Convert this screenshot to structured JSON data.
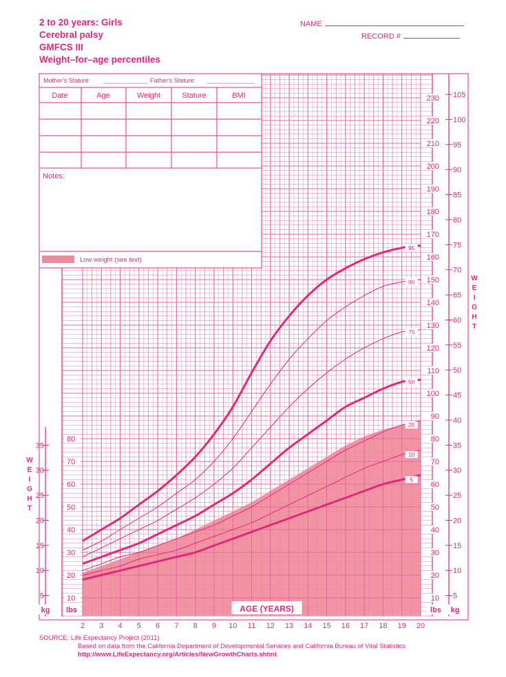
{
  "header": {
    "title_lines": [
      "2 to 20 years: Girls",
      "Cerebral palsy",
      "GMFCS III",
      "Weight–for–age percentiles"
    ],
    "name_label": "NAME",
    "record_label": "RECORD #"
  },
  "form": {
    "mothers_stature_label": "Mother's Stature:",
    "fathers_stature_label": "Father's Stature:",
    "columns": [
      "Date",
      "Age",
      "Weight",
      "Stature",
      "BMI"
    ],
    "notes_label": "Notes:",
    "legend_label": "Low weight (see text)"
  },
  "side_labels": {
    "weight_vertical": "WEIGHT"
  },
  "footer": {
    "source_line": "SOURCE:  Life Expectancy Project (2011)",
    "based_line": "Based on data from the California Department of Developmental Services and California Bureau of Vital Statistics",
    "url": "http://www.LifeExpectancy.org/Articles/NewGrowthCharts.shtml"
  },
  "colors": {
    "primary": "#e0287a",
    "shade": "#ef8a9a",
    "grid": "#e66a9e"
  },
  "chart_data": {
    "type": "line",
    "xlabel": "AGE (YEARS)",
    "x_ticks": [
      2,
      3,
      4,
      5,
      6,
      7,
      8,
      9,
      10,
      11,
      12,
      13,
      14,
      15,
      16,
      17,
      18,
      19,
      20
    ],
    "xlim": [
      2,
      20
    ],
    "y_lbs_ticks": [
      10,
      20,
      30,
      40,
      50,
      60,
      70,
      80,
      90,
      100,
      110,
      120,
      130,
      140,
      150,
      160,
      170,
      180,
      190,
      200,
      210,
      220,
      230
    ],
    "y_lbs_left_ticks": [
      10,
      20,
      30,
      40,
      50,
      60,
      70,
      80
    ],
    "y_kg_ticks": [
      5,
      10,
      15,
      20,
      25,
      30,
      35,
      40,
      45,
      50,
      55,
      60,
      65,
      70,
      75,
      80,
      85,
      90,
      95,
      100,
      105
    ],
    "y_kg_left_ticks": [
      5,
      10,
      15,
      20,
      25,
      30,
      35
    ],
    "unit_labels": {
      "kg": "kg",
      "lbs": "lbs"
    },
    "series": [
      {
        "name": "95",
        "label": "95",
        "x": [
          2,
          3,
          4,
          5,
          6,
          7,
          8,
          9,
          10,
          11,
          12,
          13,
          14,
          15,
          16,
          17,
          18,
          19,
          20
        ],
        "values": [
          35,
          40,
          45,
          51,
          57,
          64,
          72,
          82,
          94,
          109,
          123,
          134,
          143,
          150,
          155,
          159,
          162,
          164,
          165
        ]
      },
      {
        "name": "90",
        "label": "90",
        "x": [
          2,
          3,
          4,
          5,
          6,
          7,
          8,
          9,
          10,
          11,
          12,
          13,
          14,
          15,
          16,
          17,
          18,
          19,
          20
        ],
        "values": [
          31,
          35,
          40,
          45,
          50,
          56,
          62,
          70,
          80,
          92,
          104,
          115,
          124,
          132,
          138,
          143,
          147,
          149,
          150
        ]
      },
      {
        "name": "75",
        "label": "75",
        "x": [
          2,
          3,
          4,
          5,
          6,
          7,
          8,
          9,
          10,
          11,
          12,
          13,
          14,
          15,
          16,
          17,
          18,
          19,
          20
        ],
        "values": [
          28,
          32,
          36,
          40,
          44,
          49,
          54,
          60,
          67,
          76,
          85,
          94,
          102,
          109,
          115,
          120,
          124,
          127,
          128
        ]
      },
      {
        "name": "50",
        "label": "50",
        "x": [
          2,
          3,
          4,
          5,
          6,
          7,
          8,
          9,
          10,
          11,
          12,
          13,
          14,
          15,
          16,
          17,
          18,
          19,
          20
        ],
        "values": [
          25,
          28,
          31,
          34,
          38,
          42,
          46,
          51,
          56,
          62,
          69,
          76,
          82,
          88,
          94,
          98,
          102,
          105,
          106
        ]
      },
      {
        "name": "25",
        "label": "25",
        "x": [
          2,
          3,
          4,
          5,
          6,
          7,
          8,
          9,
          10,
          11,
          12,
          13,
          14,
          15,
          16,
          17,
          18,
          19,
          20
        ],
        "values": [
          22,
          25,
          28,
          30,
          33,
          36,
          39,
          42,
          46,
          50,
          55,
          60,
          65,
          70,
          75,
          79,
          83,
          86,
          88
        ]
      },
      {
        "name": "10",
        "label": "10",
        "x": [
          2,
          3,
          4,
          5,
          6,
          7,
          8,
          9,
          10,
          11,
          12,
          13,
          14,
          15,
          16,
          17,
          18,
          19,
          20
        ],
        "values": [
          20,
          22,
          24,
          27,
          29,
          31,
          34,
          37,
          40,
          43,
          47,
          51,
          55,
          59,
          63,
          67,
          70,
          73,
          75
        ]
      },
      {
        "name": "5",
        "label": "5",
        "x": [
          2,
          3,
          4,
          5,
          6,
          7,
          8,
          9,
          10,
          11,
          12,
          13,
          14,
          15,
          16,
          17,
          18,
          19,
          20
        ],
        "values": [
          18,
          20,
          22,
          24,
          26,
          28,
          30,
          33,
          36,
          39,
          42,
          45,
          48,
          51,
          54,
          57,
          60,
          62,
          64
        ]
      }
    ],
    "low_weight_band": {
      "x": [
        2,
        3,
        4,
        5,
        6,
        7,
        8,
        9,
        10,
        11,
        12,
        13,
        14,
        15,
        16,
        17,
        18,
        19,
        20
      ],
      "upper": [
        21,
        24,
        27,
        30,
        33,
        36,
        40,
        44,
        48,
        52,
        57,
        62,
        67,
        72,
        77,
        81,
        84,
        86,
        88
      ]
    }
  }
}
